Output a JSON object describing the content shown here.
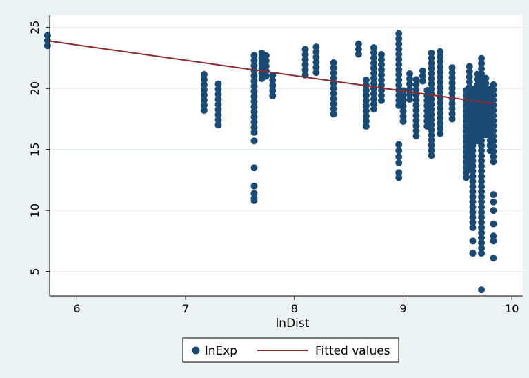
{
  "chart_data": {
    "type": "scatter",
    "title": "",
    "xlabel": "lnDist",
    "ylabel": "",
    "xlim": [
      5.75,
      10.1
    ],
    "ylim": [
      3,
      26
    ],
    "xticks": [
      6,
      7,
      8,
      9,
      10
    ],
    "yticks": [
      5,
      10,
      15,
      20,
      25
    ],
    "grid": "horizontal",
    "legend_position": "bottom",
    "colors": {
      "background": "#eaf2f3",
      "plot_area": "#ffffff",
      "points": "#1a4a73",
      "fit_line": "#8b2a2e",
      "grid": "#e4ecef"
    },
    "series": [
      {
        "name": "lnExp",
        "kind": "scatter",
        "columns": [
          {
            "x": 5.73,
            "ymin": 23.5,
            "ymax": 24.6
          },
          {
            "x": 7.17,
            "ymin": 18.2,
            "ymax": 21.4
          },
          {
            "x": 7.3,
            "ymin": 17.0,
            "ymax": 20.5
          },
          {
            "x": 7.63,
            "ymin": 16.4,
            "ymax": 22.8,
            "extra": [
              15.7,
              13.5,
              12.0,
              11.4,
              11.0,
              10.8
            ]
          },
          {
            "x": 7.7,
            "ymin": 20.8,
            "ymax": 23.2
          },
          {
            "x": 7.74,
            "ymin": 21.0,
            "ymax": 22.9
          },
          {
            "x": 7.8,
            "ymin": 19.4,
            "ymax": 21.4
          },
          {
            "x": 8.1,
            "ymin": 21.1,
            "ymax": 23.3
          },
          {
            "x": 8.2,
            "ymin": 21.3,
            "ymax": 23.6
          },
          {
            "x": 8.36,
            "ymin": 17.9,
            "ymax": 22.4
          },
          {
            "x": 8.59,
            "ymin": 22.8,
            "ymax": 24.0
          },
          {
            "x": 8.66,
            "ymin": 16.9,
            "ymax": 20.8
          },
          {
            "x": 8.73,
            "ymin": 18.3,
            "ymax": 23.5
          },
          {
            "x": 8.8,
            "ymin": 19.0,
            "ymax": 23.0
          },
          {
            "x": 8.96,
            "ymin": 18.6,
            "ymax": 24.6,
            "extra": [
              15.4,
              14.9,
              14.4,
              13.9,
              13.1,
              12.7
            ]
          },
          {
            "x": 9.0,
            "ymin": 17.3,
            "ymax": 20.2
          },
          {
            "x": 9.06,
            "ymin": 19.1,
            "ymax": 21.5
          },
          {
            "x": 9.12,
            "ymin": 16.1,
            "ymax": 21.0
          },
          {
            "x": 9.18,
            "ymin": 20.6,
            "ymax": 21.7
          },
          {
            "x": 9.22,
            "ymin": 16.9,
            "ymax": 19.9
          },
          {
            "x": 9.26,
            "ymin": 14.5,
            "ymax": 23.0
          },
          {
            "x": 9.34,
            "ymin": 16.3,
            "ymax": 23.1
          },
          {
            "x": 9.45,
            "ymin": 17.5,
            "ymax": 22.0
          },
          {
            "x": 9.58,
            "ymin": 12.7,
            "ymax": 20.0
          },
          {
            "x": 9.61,
            "ymin": 13.4,
            "ymax": 21.8
          },
          {
            "x": 9.64,
            "ymin": 8.6,
            "ymax": 20.1,
            "extra": [
              7.5,
              6.5
            ]
          },
          {
            "x": 9.68,
            "ymin": 15.7,
            "ymax": 21.4
          },
          {
            "x": 9.72,
            "ymin": 6.5,
            "ymax": 22.8,
            "extra": [
              3.5
            ]
          },
          {
            "x": 9.76,
            "ymin": 16.2,
            "ymax": 21.2
          },
          {
            "x": 9.8,
            "ymin": 14.9,
            "ymax": 20.3
          },
          {
            "x": 9.83,
            "ymin": 14.0,
            "ymax": 20.7,
            "extra": [
              11.3,
              10.7,
              10.0,
              8.9,
              7.9,
              7.5,
              6.1
            ]
          }
        ]
      },
      {
        "name": "Fitted values",
        "kind": "line",
        "x": [
          5.73,
          9.83
        ],
        "y": [
          23.9,
          18.75
        ]
      }
    ]
  }
}
